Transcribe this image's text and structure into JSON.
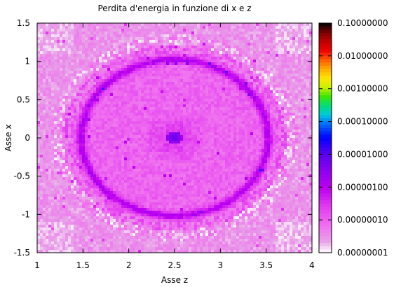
{
  "chart_data": {
    "type": "heatmap",
    "title": "Perdita d'energia in funzione di x e z",
    "xlabel": "Asse z",
    "ylabel": "Asse x",
    "xlim": [
      1,
      4
    ],
    "ylim": [
      -1.5,
      1.5
    ],
    "x_ticks": [
      "1",
      "1.5",
      "2",
      "2.5",
      "3",
      "3.5",
      "4"
    ],
    "x_tick_values": [
      1,
      1.5,
      2,
      2.5,
      3,
      3.5,
      4
    ],
    "y_ticks": [
      "1.5",
      "1",
      "0.5",
      "0",
      "-0.5",
      "-1",
      "-1.5"
    ],
    "y_tick_values": [
      1.5,
      1,
      0.5,
      0,
      -0.5,
      -1,
      -1.5
    ],
    "colorbar": {
      "scale": "log",
      "range": [
        1e-08,
        0.1
      ],
      "tick_labels": [
        "0.10000000",
        "0.01000000",
        "0.00100000",
        "0.00010000",
        "0.00001000",
        "0.00000100",
        "0.00000010",
        "0.00000001"
      ],
      "tick_values": [
        0.1,
        0.01,
        0.001,
        0.0001,
        1e-05,
        1e-06,
        1e-07,
        1e-08
      ]
    },
    "features": {
      "center": [
        2.5,
        0
      ],
      "core_value": 1e-05,
      "ring_radius": 1.02,
      "ring_value": 1.2e-06,
      "disk_edge_radius": 1.22,
      "background_value": 3e-08,
      "corner_value": 2e-08
    },
    "grid": false,
    "legend": "colorbar-right"
  }
}
